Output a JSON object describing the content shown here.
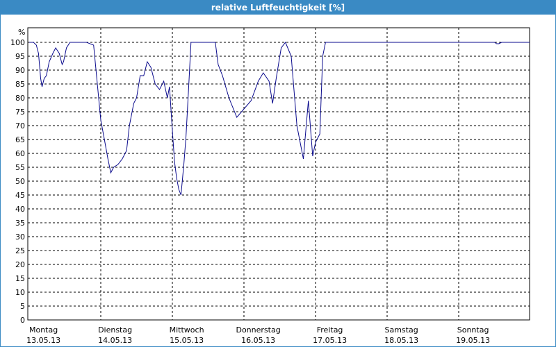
{
  "chart_data": {
    "type": "line",
    "title": "relative Luftfeuchtigkeit [%]",
    "yunit": "%",
    "ylim": [
      0,
      100
    ],
    "yticks": [
      0,
      5,
      10,
      15,
      20,
      25,
      30,
      35,
      40,
      45,
      50,
      55,
      60,
      65,
      70,
      75,
      80,
      85,
      90,
      95,
      100
    ],
    "xlim": [
      0,
      7
    ],
    "xticks": [
      {
        "day": "Montag",
        "date": "13.05.13"
      },
      {
        "day": "Dienstag",
        "date": "14.05.13"
      },
      {
        "day": "Mittwoch",
        "date": "15.05.13"
      },
      {
        "day": "Donnerstag",
        "date": "16.05.13"
      },
      {
        "day": "Freitag",
        "date": "17.05.13"
      },
      {
        "day": "Samstag",
        "date": "18.05.13"
      },
      {
        "day": "Sonntag",
        "date": "19.05.13"
      }
    ],
    "grid": true,
    "colors": {
      "line": "#0a0a8c",
      "title_bar": "#3a8ac4"
    },
    "series": [
      {
        "x": [
          0,
          0.06,
          0.1,
          0.13,
          0.16,
          0.18,
          0.21,
          0.24,
          0.28,
          0.33,
          0.37,
          0.42,
          0.46,
          0.48,
          0.52,
          0.57,
          0.6,
          0.65,
          0.7,
          0.8,
          0.9,
          1.0,
          1.05,
          1.1,
          1.14,
          1.18,
          1.24,
          1.3,
          1.36,
          1.4,
          1.46,
          1.5,
          1.55,
          1.6,
          1.65,
          1.7,
          1.76,
          1.82,
          1.88,
          1.93,
          1.96,
          1.99,
          2.03,
          2.06,
          2.09,
          2.12,
          2.16,
          2.19,
          2.23,
          2.26,
          2.28,
          2.3,
          2.33,
          2.36,
          2.41,
          2.48,
          2.54,
          2.6,
          2.64,
          2.7,
          2.79,
          2.9,
          3.1,
          3.2,
          3.27,
          3.35,
          3.4,
          3.45,
          3.52,
          3.58,
          3.66,
          3.74,
          3.83,
          3.9,
          3.96,
          4.0,
          4.06,
          4.1,
          4.14,
          4.18,
          4.21,
          4.24,
          4.26,
          4.29,
          4.31,
          4.34,
          4.38,
          4.42,
          4.49,
          4.55,
          4.58,
          4.62,
          4.65,
          4.68,
          4.71,
          4.74,
          4.76,
          4.8,
          4.84,
          4.9,
          4.96,
          5.05,
          5.5,
          6.0,
          6.5,
          6.53,
          6.56,
          6.6,
          6.8,
          6.99
        ],
        "values": [
          100,
          100,
          99,
          96,
          87,
          84,
          87,
          88,
          93,
          96,
          98,
          96,
          92,
          93,
          98,
          100,
          100,
          100,
          100,
          100,
          99,
          72,
          65,
          58,
          53,
          55,
          56,
          58,
          61,
          70,
          78,
          80,
          88,
          88,
          93,
          91,
          85,
          83,
          86,
          80,
          84,
          72,
          57,
          51,
          47,
          45,
          56,
          66,
          85,
          100,
          100,
          100,
          100,
          100,
          100,
          100,
          100,
          100,
          92,
          88,
          80,
          73,
          79,
          86,
          89,
          86,
          78,
          87,
          98,
          100,
          95,
          70,
          58,
          79,
          59,
          64,
          67,
          95,
          100,
          100,
          100,
          100,
          100,
          100,
          100,
          100,
          100,
          100,
          100,
          100,
          100,
          100,
          100,
          100,
          100,
          100,
          100,
          100,
          100,
          100,
          100,
          100,
          100,
          100,
          100,
          99.5,
          99.5,
          100,
          100,
          100
        ]
      }
    ]
  }
}
